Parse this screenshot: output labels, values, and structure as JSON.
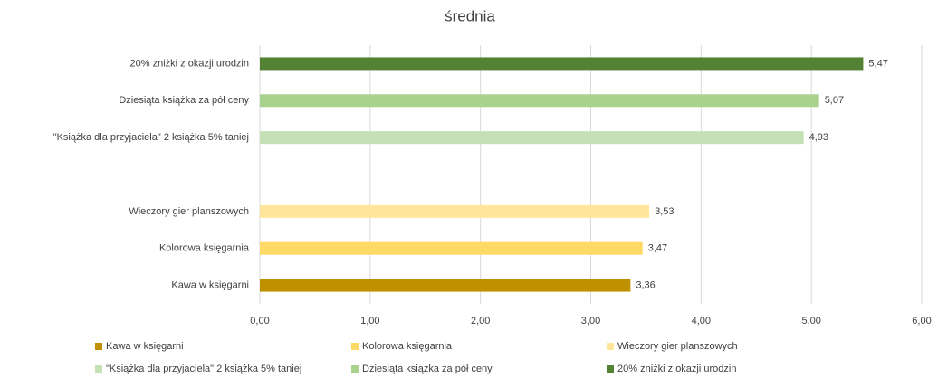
{
  "chart_data": {
    "type": "hbar",
    "title": "średnia",
    "categories": [
      "20% zniżki z okazji urodzin",
      "Dziesiąta książka za pół ceny",
      "\"Książka dla przyjaciela\" 2 książka 5% taniej",
      null,
      "Wieczory gier planszowych",
      "Kolorowa księgarnia",
      "Kawa w księgarni"
    ],
    "values": [
      5.47,
      5.07,
      4.93,
      null,
      3.53,
      3.47,
      3.36
    ],
    "value_labels": [
      "5,47",
      "5,07",
      "4,93",
      null,
      "3,53",
      "3,47",
      "3,36"
    ],
    "colors": [
      "#548235",
      "#a9d18e",
      "#c5e0b4",
      null,
      "#ffe699",
      "#ffd966",
      "#bf9000"
    ],
    "xlim": [
      0,
      6
    ],
    "xticks": [
      {
        "value": 0,
        "label": "0,00"
      },
      {
        "value": 1,
        "label": "1,00"
      },
      {
        "value": 2,
        "label": "2,00"
      },
      {
        "value": 3,
        "label": "3,00"
      },
      {
        "value": 4,
        "label": "4,00"
      },
      {
        "value": 5,
        "label": "5,00"
      },
      {
        "value": 6,
        "label": "6,00"
      }
    ],
    "grid": true,
    "legend": "bottom"
  }
}
